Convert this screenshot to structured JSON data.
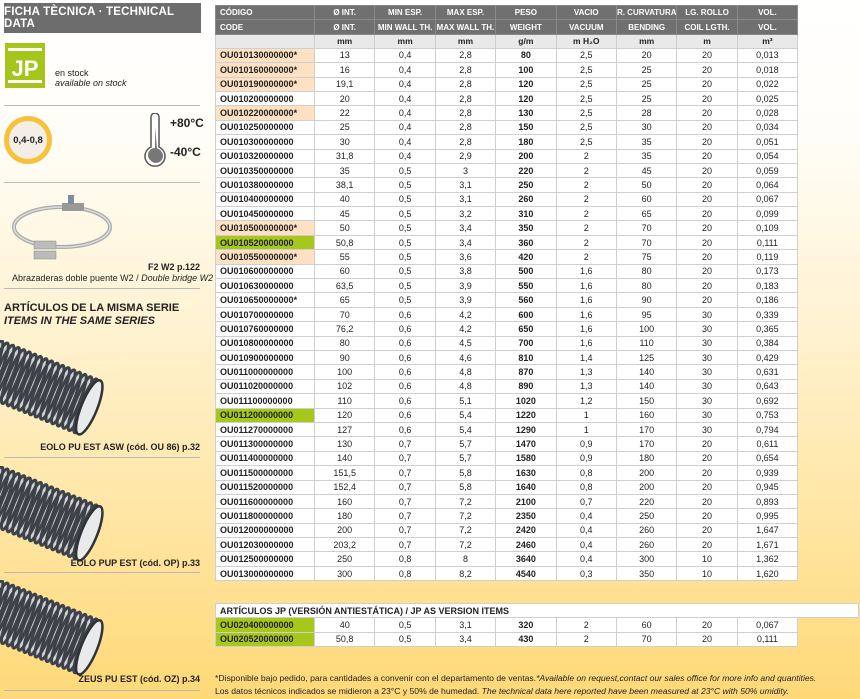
{
  "sidebar": {
    "title": "FICHA TÈCNICA · TECHNICAL DATA",
    "logo": "JP",
    "stock_es": "en stock",
    "stock_en": "available on stock",
    "thickness_badge": "0,4-0,8",
    "temp_max": "+80°C",
    "temp_min": "-40°C",
    "accessory": {
      "ref": "F2 W2 p.122",
      "caption_es": "Abrazaderas doble puente W2 / ",
      "caption_en": "Double bridge W2"
    },
    "series_title_es": "ARTÍCULOS DE LA MISMA SERIE",
    "series_title_en": "ITEMS IN THE SAME SERIES",
    "related": [
      {
        "label": "EOLO PU EST ASW (cód. OU 86) p.32"
      },
      {
        "label": "EOLO PUP EST (cód. OP) p.33"
      },
      {
        "label": "ZEUS PU EST (cód. OZ) p.34"
      }
    ]
  },
  "colors": {
    "header": "#707070",
    "green": "#a7c71b",
    "orange": "#fde1c2",
    "badge": "#f8c13a"
  },
  "table": {
    "headers_es": [
      "CÓDIGO",
      "Ø INT.",
      "MIN ESP.",
      "MAX ESP.",
      "PESO",
      "VACIO",
      "R. CURVATURA",
      "LG. ROLLO",
      "VOL."
    ],
    "headers_en": [
      "CODE",
      "Ø INT.",
      "MIN WALL TH.",
      "MAX WALL TH.",
      "WEIGHT",
      "VACUUM",
      "BENDING",
      "COIL LGTH.",
      "VOL."
    ],
    "units": [
      "",
      "mm",
      "mm",
      "mm",
      "g/m",
      "m H₂O",
      "mm",
      "m",
      "m³"
    ],
    "rows": [
      {
        "hl": "orange",
        "c": [
          "OU010130000000*",
          "13",
          "0,4",
          "2,8",
          "80",
          "2,5",
          "20",
          "20",
          "0,013"
        ]
      },
      {
        "hl": "orange",
        "c": [
          "OU010160000000*",
          "16",
          "0,4",
          "2,8",
          "100",
          "2,5",
          "25",
          "20",
          "0,018"
        ]
      },
      {
        "hl": "orange",
        "c": [
          "OU010190000000*",
          "19,1",
          "0,4",
          "2,8",
          "120",
          "2,5",
          "25",
          "20",
          "0,022"
        ]
      },
      {
        "hl": "",
        "c": [
          "OU010200000000",
          "20",
          "0,4",
          "2,8",
          "120",
          "2,5",
          "25",
          "20",
          "0,025"
        ]
      },
      {
        "hl": "orange",
        "c": [
          "OU010220000000*",
          "22",
          "0,4",
          "2,8",
          "130",
          "2,5",
          "28",
          "20",
          "0,028"
        ]
      },
      {
        "hl": "",
        "c": [
          "OU010250000000",
          "25",
          "0,4",
          "2,8",
          "150",
          "2,5",
          "30",
          "20",
          "0,034"
        ]
      },
      {
        "hl": "",
        "c": [
          "OU010300000000",
          "30",
          "0,4",
          "2,8",
          "180",
          "2,5",
          "35",
          "20",
          "0,051"
        ]
      },
      {
        "hl": "",
        "c": [
          "OU010320000000",
          "31,8",
          "0,4",
          "2,9",
          "200",
          "2",
          "35",
          "20",
          "0,054"
        ]
      },
      {
        "hl": "",
        "c": [
          "OU010350000000",
          "35",
          "0,5",
          "3",
          "220",
          "2",
          "45",
          "20",
          "0,059"
        ]
      },
      {
        "hl": "",
        "c": [
          "OU010380000000",
          "38,1",
          "0,5",
          "3,1",
          "250",
          "2",
          "50",
          "20",
          "0,064"
        ]
      },
      {
        "hl": "",
        "c": [
          "OU010400000000",
          "40",
          "0,5",
          "3,1",
          "260",
          "2",
          "60",
          "20",
          "0,067"
        ]
      },
      {
        "hl": "",
        "c": [
          "OU010450000000",
          "45",
          "0,5",
          "3,2",
          "310",
          "2",
          "65",
          "20",
          "0,099"
        ]
      },
      {
        "hl": "orange",
        "c": [
          "OU010500000000*",
          "50",
          "0,5",
          "3,4",
          "350",
          "2",
          "70",
          "20",
          "0,109"
        ]
      },
      {
        "hl": "green",
        "c": [
          "OU010520000000",
          "50,8",
          "0,5",
          "3,4",
          "360",
          "2",
          "70",
          "20",
          "0,111"
        ]
      },
      {
        "hl": "orange",
        "c": [
          "OU010550000000*",
          "55",
          "0,5",
          "3,6",
          "420",
          "2",
          "75",
          "20",
          "0,119"
        ]
      },
      {
        "hl": "",
        "c": [
          "OU010600000000",
          "60",
          "0,5",
          "3,8",
          "500",
          "1,6",
          "80",
          "20",
          "0,173"
        ]
      },
      {
        "hl": "",
        "c": [
          "OU010630000000",
          "63,5",
          "0,5",
          "3,9",
          "550",
          "1,6",
          "80",
          "20",
          "0,183"
        ]
      },
      {
        "hl": "",
        "c": [
          "OU010650000000*",
          "65",
          "0,5",
          "3,9",
          "560",
          "1,6",
          "90",
          "20",
          "0,186"
        ]
      },
      {
        "hl": "",
        "c": [
          "OU010700000000",
          "70",
          "0,6",
          "4,2",
          "600",
          "1,6",
          "95",
          "30",
          "0,339"
        ]
      },
      {
        "hl": "",
        "c": [
          "OU010760000000",
          "76,2",
          "0,6",
          "4,2",
          "650",
          "1,6",
          "100",
          "30",
          "0,365"
        ]
      },
      {
        "hl": "",
        "c": [
          "OU010800000000",
          "80",
          "0,6",
          "4,5",
          "700",
          "1,6",
          "110",
          "30",
          "0,384"
        ]
      },
      {
        "hl": "",
        "c": [
          "OU010900000000",
          "90",
          "0,6",
          "4,6",
          "810",
          "1,4",
          "125",
          "30",
          "0,429"
        ]
      },
      {
        "hl": "",
        "c": [
          "OU011000000000",
          "100",
          "0,6",
          "4,8",
          "870",
          "1,3",
          "140",
          "30",
          "0,631"
        ]
      },
      {
        "hl": "",
        "c": [
          "OU011020000000",
          "102",
          "0,6",
          "4,8",
          "890",
          "1,3",
          "140",
          "30",
          "0,643"
        ]
      },
      {
        "hl": "",
        "c": [
          "OU011100000000",
          "110",
          "0,6",
          "5,1",
          "1020",
          "1,2",
          "150",
          "30",
          "0,692"
        ]
      },
      {
        "hl": "green",
        "c": [
          "OU011200000000",
          "120",
          "0,6",
          "5,4",
          "1220",
          "1",
          "160",
          "30",
          "0,753"
        ]
      },
      {
        "hl": "",
        "c": [
          "OU011270000000",
          "127",
          "0,6",
          "5,4",
          "1290",
          "1",
          "170",
          "30",
          "0,794"
        ]
      },
      {
        "hl": "",
        "c": [
          "OU011300000000",
          "130",
          "0,7",
          "5,7",
          "1470",
          "0,9",
          "170",
          "20",
          "0,611"
        ]
      },
      {
        "hl": "",
        "c": [
          "OU011400000000",
          "140",
          "0,7",
          "5,7",
          "1580",
          "0,9",
          "180",
          "20",
          "0,654"
        ]
      },
      {
        "hl": "",
        "c": [
          "OU011500000000",
          "151,5",
          "0,7",
          "5,8",
          "1630",
          "0,8",
          "200",
          "20",
          "0,939"
        ]
      },
      {
        "hl": "",
        "c": [
          "OU011520000000",
          "152,4",
          "0,7",
          "5,8",
          "1640",
          "0,8",
          "200",
          "20",
          "0,945"
        ]
      },
      {
        "hl": "",
        "c": [
          "OU011600000000",
          "160",
          "0,7",
          "7,2",
          "2100",
          "0,7",
          "220",
          "20",
          "0,893"
        ]
      },
      {
        "hl": "",
        "c": [
          "OU011800000000",
          "180",
          "0,7",
          "7,2",
          "2350",
          "0,4",
          "250",
          "20",
          "0,995"
        ]
      },
      {
        "hl": "",
        "c": [
          "OU012000000000",
          "200",
          "0,7",
          "7,2",
          "2420",
          "0,4",
          "260",
          "20",
          "1,647"
        ]
      },
      {
        "hl": "",
        "c": [
          "OU012030000000",
          "203,2",
          "0,7",
          "7,2",
          "2460",
          "0,4",
          "260",
          "20",
          "1,671"
        ]
      },
      {
        "hl": "",
        "c": [
          "OU012500000000",
          "250",
          "0,8",
          "8",
          "3640",
          "0,4",
          "300",
          "10",
          "1,362"
        ]
      },
      {
        "hl": "",
        "c": [
          "OU013000000000",
          "300",
          "0,8",
          "8,2",
          "4540",
          "0,3",
          "350",
          "10",
          "1,620"
        ]
      }
    ]
  },
  "jp_table": {
    "title": "ARTÍCULOS JP (VERSIÓN ANTIESTÁTICA) / JP AS VERSION ITEMS",
    "rows": [
      {
        "hl": "green",
        "c": [
          "OU020400000000",
          "40",
          "0,5",
          "3,1",
          "320",
          "2",
          "60",
          "20",
          "0,067"
        ]
      },
      {
        "hl": "green",
        "c": [
          "OU020520000000",
          "50,8",
          "0,5",
          "3,4",
          "430",
          "2",
          "70",
          "20",
          "0,111"
        ]
      }
    ]
  },
  "footnotes": {
    "line1_es": "*Disponible bajo pedido, para cantidades a convenir con el departamento de ventas.",
    "line1_en": "*Available on request,contact our sales office for more info and quantities.",
    "line2_es": "Los datos técnicos indicados se midieron a 23°C y 50% de humedad. ",
    "line2_en": "The technical data here reported have been measured at 23°C with 50% umidity."
  }
}
